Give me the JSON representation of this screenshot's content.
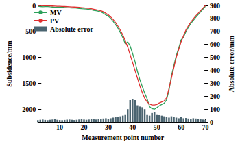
{
  "chart_data": {
    "type": "line",
    "xlabel": "Measurement point number",
    "ylabel": "Subsidence/mm",
    "y2label": "Absolute error/mm",
    "x": [
      1,
      2,
      3,
      4,
      5,
      6,
      7,
      8,
      9,
      10,
      11,
      12,
      13,
      14,
      15,
      16,
      17,
      18,
      19,
      20,
      21,
      22,
      23,
      24,
      25,
      26,
      27,
      28,
      29,
      30,
      31,
      32,
      33,
      34,
      35,
      36,
      37,
      38,
      39,
      40,
      41,
      42,
      43,
      44,
      45,
      46,
      47,
      48,
      49,
      50,
      51,
      52,
      53,
      54,
      55,
      56,
      57,
      58,
      59,
      60,
      61,
      62,
      63,
      64,
      65,
      66,
      67,
      68,
      69,
      70
    ],
    "series": [
      {
        "name": "MV",
        "color": "#2ca05a",
        "values": [
          -15,
          -20,
          -24,
          -22,
          -21,
          -26,
          -30,
          -34,
          -32,
          -32,
          -33,
          -37,
          -41,
          -45,
          -46,
          -46,
          -51,
          -56,
          -62,
          -65,
          -68,
          -75,
          -82,
          -95,
          -100,
          -112,
          -125,
          -148,
          -180,
          -206,
          -250,
          -305,
          -370,
          -438,
          -525,
          -620,
          -740,
          -700,
          -780,
          -925,
          -1080,
          -1270,
          -1430,
          -1565,
          -1690,
          -1800,
          -1950,
          -1990,
          -2000,
          -1970,
          -1935,
          -1910,
          -1885,
          -1820,
          -1635,
          -1355,
          -1160,
          -965,
          -820,
          -662,
          -610,
          -502,
          -418,
          -345,
          -290,
          -228,
          -175,
          -122,
          -70,
          -18
        ]
      },
      {
        "name": "PV",
        "color": "#e03030",
        "values": [
          0,
          -2,
          -4,
          -5,
          -6,
          -8,
          -10,
          -12,
          -14,
          -16,
          -18,
          -20,
          -22,
          -25,
          -28,
          -30,
          -33,
          -36,
          -40,
          -45,
          -50,
          -55,
          -60,
          -70,
          -80,
          -90,
          -100,
          -120,
          -150,
          -180,
          -220,
          -270,
          -330,
          -400,
          -480,
          -570,
          -680,
          -800,
          -950,
          -1100,
          -1250,
          -1400,
          -1550,
          -1680,
          -1790,
          -1860,
          -1900,
          -1920,
          -1920,
          -1910,
          -1880,
          -1860,
          -1840,
          -1780,
          -1600,
          -1400,
          -1200,
          -1000,
          -850,
          -700,
          -580,
          -470,
          -390,
          -320,
          -260,
          -200,
          -150,
          -100,
          -50,
          0
        ]
      },
      {
        "name": "Absolute error",
        "type": "bar",
        "axis": "y2",
        "color": "#4a6470",
        "values": [
          15,
          18,
          20,
          17,
          15,
          18,
          20,
          22,
          18,
          16,
          15,
          17,
          19,
          20,
          18,
          16,
          18,
          20,
          22,
          20,
          18,
          20,
          22,
          25,
          20,
          22,
          25,
          28,
          30,
          26,
          30,
          35,
          40,
          38,
          45,
          50,
          60,
          100,
          170,
          175,
          170,
          130,
          120,
          115,
          100,
          60,
          50,
          70,
          80,
          60,
          55,
          50,
          45,
          40,
          35,
          45,
          40,
          35,
          30,
          38,
          30,
          32,
          28,
          25,
          30,
          28,
          25,
          22,
          20,
          18
        ]
      }
    ],
    "xlim": [
      1,
      71
    ],
    "xticks": [
      10,
      20,
      30,
      40,
      50,
      60,
      70
    ],
    "ylim": [
      -2250,
      0
    ],
    "yticks": [
      -2000,
      -1500,
      -1000,
      -500,
      0
    ],
    "y2lim": [
      0,
      900
    ],
    "y2ticks": [
      0,
      100,
      200,
      300,
      400,
      500,
      600,
      700,
      800,
      900
    ],
    "legend": "upper left",
    "grid": false
  }
}
